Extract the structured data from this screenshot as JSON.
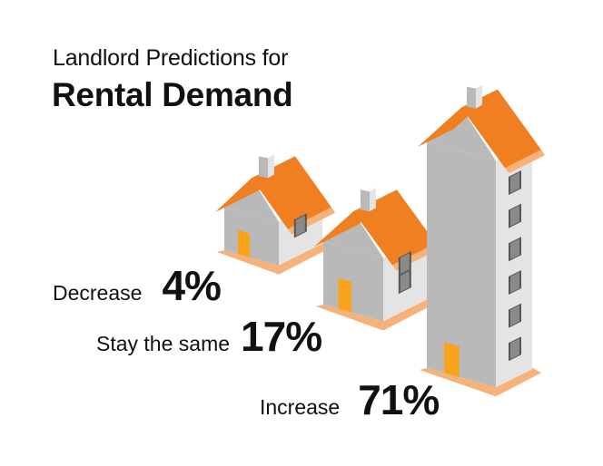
{
  "header": {
    "line1": "Landlord Predictions for",
    "line2": "Rental Demand"
  },
  "colors": {
    "roof": "#f07f21",
    "roof_side": "#f6b278",
    "wall_dark": "#b9b9b9",
    "wall_light": "#e4e4e4",
    "door": "#f9a31c",
    "window": "#555555"
  },
  "chart_data": {
    "type": "bar",
    "title": "Landlord Predictions for Rental Demand",
    "categories": [
      "Decrease",
      "Stay the same",
      "Increase"
    ],
    "values": [
      4,
      17,
      71
    ],
    "value_labels": [
      "4%",
      "17%",
      "71%"
    ],
    "unit": "%",
    "xlabel": "",
    "ylabel": "",
    "grid": false,
    "legend": "none"
  }
}
